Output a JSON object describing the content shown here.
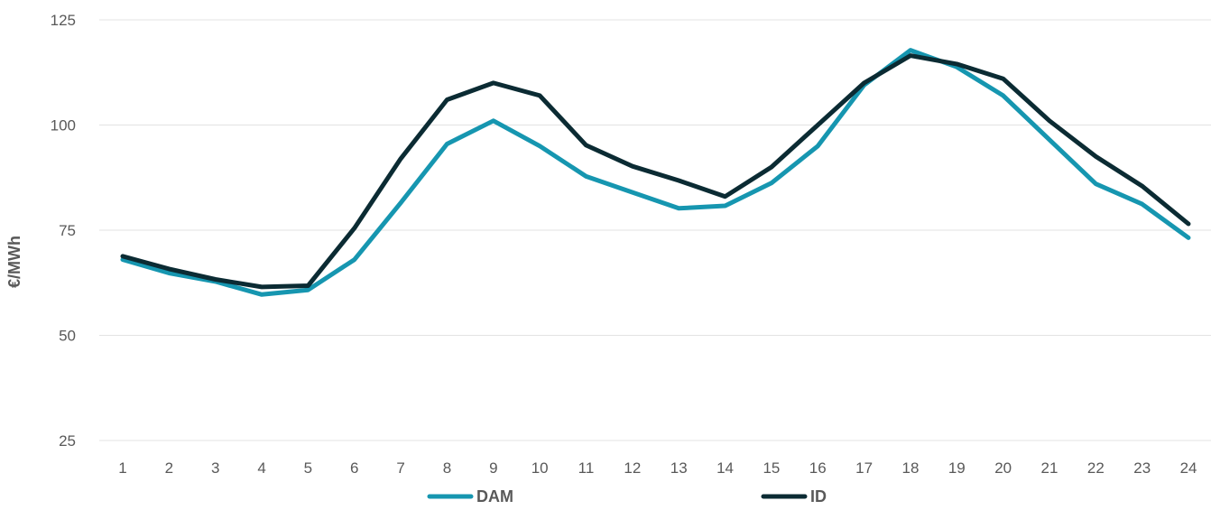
{
  "chart_data": {
    "type": "line",
    "title": "",
    "xlabel": "",
    "ylabel": "€/MWh",
    "categories": [
      "1",
      "2",
      "3",
      "4",
      "5",
      "6",
      "7",
      "8",
      "9",
      "10",
      "11",
      "12",
      "13",
      "14",
      "15",
      "16",
      "17",
      "18",
      "19",
      "20",
      "21",
      "22",
      "23",
      "24"
    ],
    "ylim": [
      25,
      125
    ],
    "yticks": [
      25,
      50,
      75,
      100,
      125
    ],
    "grid": true,
    "legend": "bottom",
    "series": [
      {
        "name": "DAM",
        "color": "#1696b0",
        "values": [
          68,
          64.8,
          62.8,
          59.7,
          60.8,
          68,
          81.5,
          95.5,
          101,
          95,
          87.8,
          84,
          80.2,
          80.8,
          86.2,
          95,
          109.5,
          117.8,
          113.8,
          107,
          96.5,
          86,
          81.2,
          73.2
        ]
      },
      {
        "name": "ID",
        "color": "#0b2b33",
        "values": [
          68.8,
          65.8,
          63.3,
          61.5,
          61.8,
          75.5,
          92,
          106,
          110,
          107,
          95.2,
          90.2,
          86.8,
          83,
          90,
          100,
          110,
          116.5,
          114.5,
          111,
          101,
          92.5,
          85.5,
          76.5
        ]
      }
    ]
  }
}
